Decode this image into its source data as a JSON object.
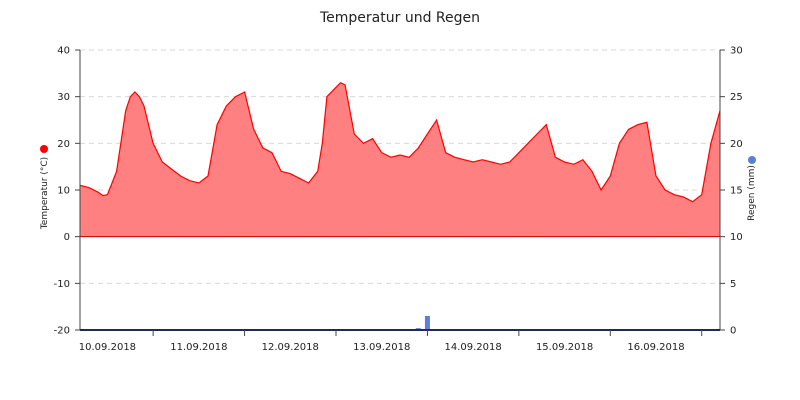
{
  "chart_data": {
    "type": "area",
    "title": "Temperatur und Regen",
    "x_tick_labels": [
      "10.09.2018",
      "11.09.2018",
      "12.09.2018",
      "13.09.2018",
      "14.09.2018",
      "15.09.2018",
      "16.09.2018"
    ],
    "x_range_days": [
      -0.3,
      6.7
    ],
    "left_axis": {
      "label": "Temperatur (°C)",
      "ylim": [
        -20,
        40
      ],
      "ticks": [
        -20,
        -10,
        0,
        10,
        20,
        30,
        40
      ],
      "marker_color": "#ff0000"
    },
    "right_axis": {
      "label": "Regen (mm)",
      "ylim": [
        0,
        30
      ],
      "ticks": [
        0,
        5,
        10,
        15,
        20,
        25,
        30
      ],
      "marker_color": "#5b7fdb"
    },
    "grid": true,
    "legend": "none",
    "series": [
      {
        "type": "area",
        "axis": "left",
        "color": "#ff0000",
        "fill": "#ff8080",
        "x": [
          -0.3,
          -0.2,
          -0.1,
          -0.05,
          0.0,
          0.1,
          0.2,
          0.25,
          0.3,
          0.35,
          0.4,
          0.5,
          0.6,
          0.7,
          0.8,
          0.9,
          1.0,
          1.1,
          1.2,
          1.3,
          1.35,
          1.4,
          1.5,
          1.6,
          1.7,
          1.8,
          1.85,
          1.9,
          2.0,
          2.1,
          2.2,
          2.3,
          2.35,
          2.4,
          2.5,
          2.55,
          2.6,
          2.7,
          2.8,
          2.9,
          3.0,
          3.1,
          3.2,
          3.3,
          3.35,
          3.4,
          3.5,
          3.6,
          3.7,
          3.8,
          3.9,
          4.0,
          4.1,
          4.2,
          4.3,
          4.4,
          4.5,
          4.6,
          4.7,
          4.8,
          4.9,
          5.0,
          5.1,
          5.15,
          5.2,
          5.3,
          5.4,
          5.5,
          5.6,
          5.7,
          5.8,
          5.9,
          6.0,
          6.1,
          6.2,
          6.3,
          6.4,
          6.5,
          6.6,
          6.7
        ],
        "values": [
          11,
          10.5,
          9.5,
          8.8,
          9,
          14,
          27,
          30,
          31,
          30,
          28,
          20,
          16,
          14.5,
          13,
          12,
          11.5,
          13,
          24,
          28,
          29,
          30,
          31,
          23,
          19,
          18,
          16,
          14,
          13.5,
          12.5,
          11.5,
          14,
          20,
          30,
          32,
          33,
          32.5,
          22,
          20,
          21,
          18,
          17,
          17.5,
          17,
          18,
          19,
          22,
          25,
          18,
          17,
          16.5,
          16,
          16.5,
          16,
          15.5,
          16,
          18,
          20,
          22,
          24,
          17,
          16,
          15.5,
          16,
          16.5,
          14,
          10,
          13,
          20,
          23,
          24,
          24.5,
          13,
          10,
          9,
          8.5,
          7.5,
          9,
          20,
          27
        ]
      },
      {
        "type": "bar",
        "axis": "right",
        "color": "#5b7fdb",
        "x": [
          3.4,
          3.5
        ],
        "values": [
          0.2,
          1.5
        ]
      }
    ]
  }
}
